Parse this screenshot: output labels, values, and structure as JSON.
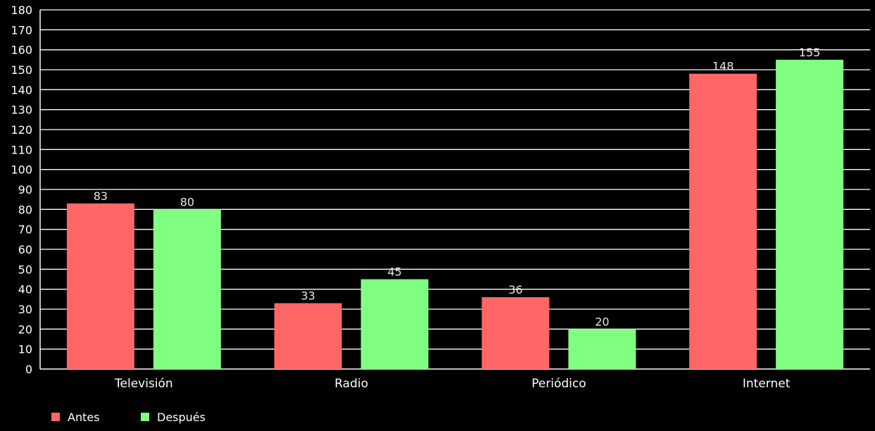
{
  "chart_data": {
    "type": "bar",
    "title": "",
    "xlabel": "",
    "ylabel": "",
    "categories": [
      "Televisión",
      "Radio",
      "Periódico",
      "Internet"
    ],
    "series": [
      {
        "name": "Antes",
        "values": [
          83,
          33,
          36,
          148
        ],
        "color": "#ff6666"
      },
      {
        "name": "Después",
        "values": [
          80,
          45,
          20,
          155
        ],
        "color": "#80ff80"
      }
    ],
    "ylim": [
      0,
      180
    ],
    "y_tick_step": 10,
    "y_ticks": [
      "0",
      "10",
      "20",
      "30",
      "40",
      "50",
      "60",
      "70",
      "80",
      "90",
      "100",
      "110",
      "120",
      "130",
      "140",
      "150",
      "160",
      "170",
      "180"
    ],
    "grid": true,
    "data_labels": true,
    "legend_position": "bottom-left",
    "background": "#000000",
    "text_color": "#ffffff"
  }
}
